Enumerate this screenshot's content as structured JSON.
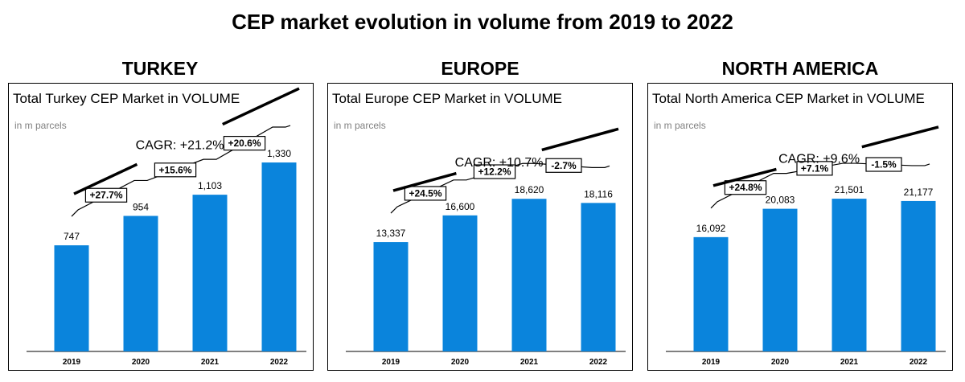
{
  "title": "CEP market evolution in volume from 2019 to 2022",
  "colors": {
    "bar": "#0a84dc",
    "text": "#000000",
    "unit": "#808080"
  },
  "chart_data": [
    {
      "type": "bar",
      "region": "TURKEY",
      "title": "Total Turkey CEP Market in VOLUME",
      "unit": "in m parcels",
      "categories": [
        "2019",
        "2020",
        "2021",
        "2022"
      ],
      "values": [
        747,
        954,
        1103,
        1330
      ],
      "value_labels": [
        "747",
        "954",
        "1,103",
        "1,330"
      ],
      "growth_labels": [
        "+27.7%",
        "+15.6%",
        "+20.6%"
      ],
      "cagr": "CAGR: +21.2%",
      "ylim": [
        0,
        1500
      ]
    },
    {
      "type": "bar",
      "region": "EUROPE",
      "title": "Total Europe CEP Market in VOLUME",
      "unit": "in m parcels",
      "categories": [
        "2019",
        "2020",
        "2021",
        "2022"
      ],
      "values": [
        13337,
        16600,
        18620,
        18116
      ],
      "value_labels": [
        "13,337",
        "16,600",
        "18,620",
        "18,116"
      ],
      "growth_labels": [
        "+24.5%",
        "+12.2%",
        "-2.7%"
      ],
      "cagr": "CAGR: +10.7%",
      "ylim": [
        0,
        26000
      ]
    },
    {
      "type": "bar",
      "region": "NORTH AMERICA",
      "title": "Total North America CEP Market in VOLUME",
      "unit": "in m parcels",
      "categories": [
        "2019",
        "2020",
        "2021",
        "2022"
      ],
      "values": [
        16092,
        20083,
        21501,
        21177
      ],
      "value_labels": [
        "16,092",
        "20,083",
        "21,501",
        "21,177"
      ],
      "growth_labels": [
        "+24.8%",
        "+7.1%",
        "-1.5%"
      ],
      "cagr": "CAGR: +9.6%",
      "ylim": [
        0,
        30000
      ]
    }
  ]
}
